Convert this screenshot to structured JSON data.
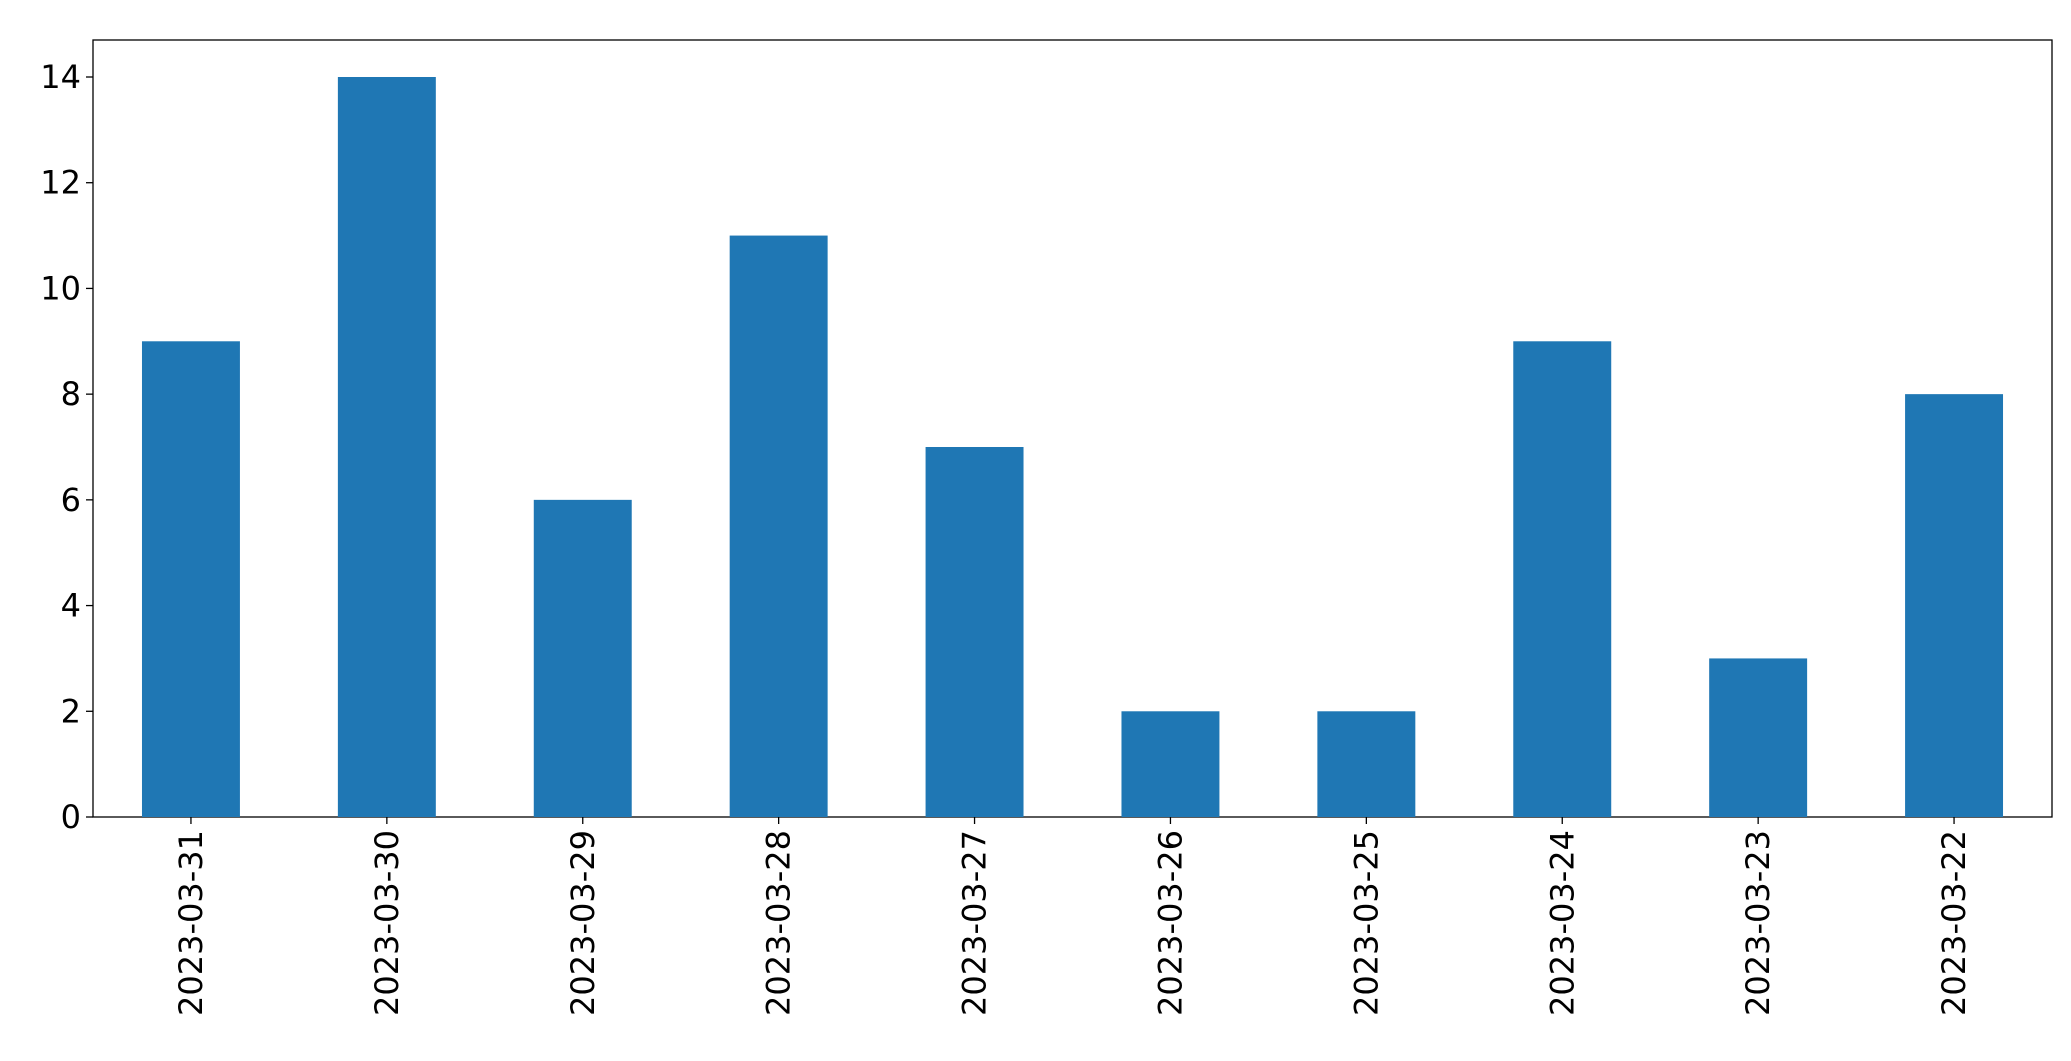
{
  "chart_data": {
    "type": "bar",
    "categories": [
      "2023-03-31",
      "2023-03-30",
      "2023-03-29",
      "2023-03-28",
      "2023-03-27",
      "2023-03-26",
      "2023-03-25",
      "2023-03-24",
      "2023-03-23",
      "2023-03-22"
    ],
    "values": [
      9,
      14,
      6,
      11,
      7,
      2,
      2,
      9,
      3,
      8
    ],
    "color": "#1f77b4",
    "ylim": [
      0,
      14.7
    ],
    "yticks": [
      0,
      2,
      4,
      6,
      8,
      10,
      12,
      14
    ],
    "grid": false
  }
}
